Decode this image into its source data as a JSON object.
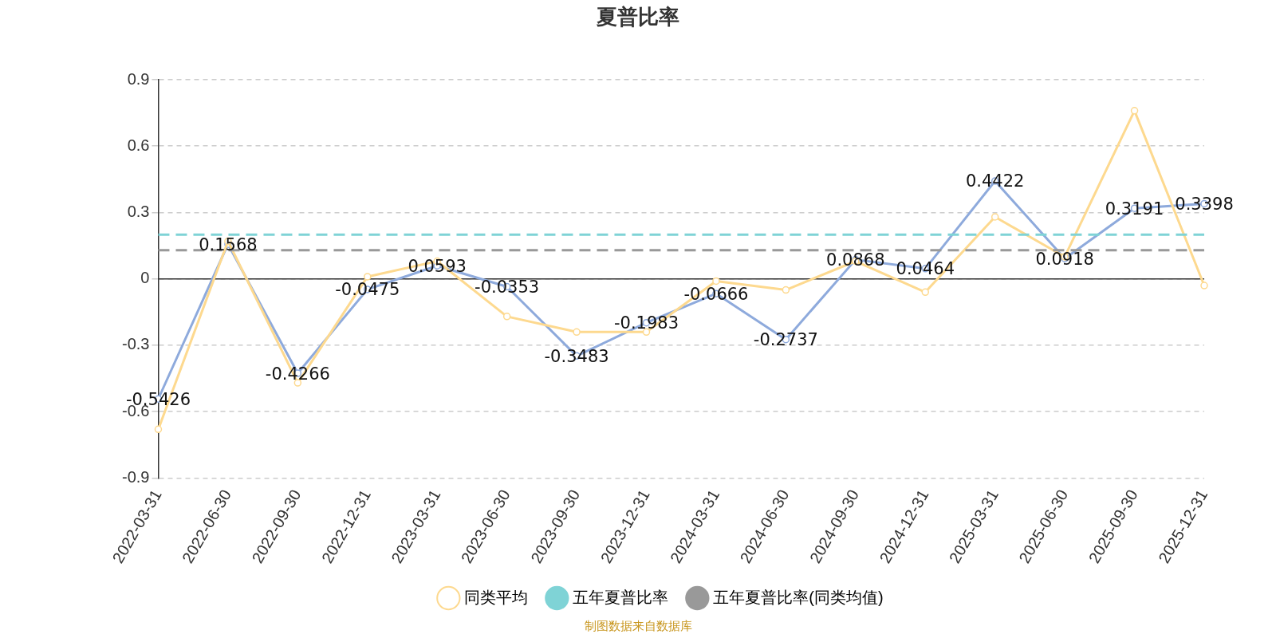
{
  "chart_data": {
    "type": "line",
    "title": "夏普比率",
    "categories": [
      "2022-03-31",
      "2022-06-30",
      "2022-09-30",
      "2022-12-31",
      "2023-03-31",
      "2023-06-30",
      "2023-09-30",
      "2023-12-31",
      "2024-03-31",
      "2024-06-30",
      "2024-09-30",
      "2024-12-31",
      "2025-03-31",
      "2025-06-30",
      "2025-09-30",
      "2025-12-31"
    ],
    "series": [
      {
        "color": "#8eaadc",
        "marker": "circle",
        "values": [
          -0.5426,
          0.1568,
          -0.4266,
          -0.0475,
          0.0593,
          -0.0353,
          -0.3483,
          -0.1983,
          -0.0666,
          -0.2737,
          0.0868,
          0.0464,
          0.4422,
          0.0918,
          0.3191,
          0.3398
        ],
        "value_labels": [
          "-0.5426",
          "0.1568",
          "-0.4266",
          "-0.0475",
          "0.0593",
          "-0.0353",
          "-0.3483",
          "-0.1983",
          "-0.0666",
          "-0.2737",
          "0.0868",
          "0.0464",
          "0.4422",
          "0.0918",
          "0.3191",
          "0.3398"
        ]
      },
      {
        "name": "同类平均",
        "color": "#fdd98f",
        "marker": "circle",
        "values": [
          -0.68,
          0.17,
          -0.47,
          0.01,
          0.08,
          -0.17,
          -0.24,
          -0.24,
          -0.01,
          -0.05,
          0.08,
          -0.06,
          0.28,
          0.1,
          0.76,
          -0.03
        ]
      },
      {
        "name": "五年夏普比率",
        "color": "#7fd3d6",
        "marker": "none",
        "line_style": "dashed",
        "values": [
          0.2,
          0.2,
          0.2,
          0.2,
          0.2,
          0.2,
          0.2,
          0.2,
          0.2,
          0.2,
          0.2,
          0.2,
          0.2,
          0.2,
          0.2,
          0.2
        ]
      },
      {
        "name": "五年夏普比率(同类均值)",
        "color": "#999999",
        "marker": "none",
        "line_style": "dashed",
        "values": [
          0.13,
          0.13,
          0.13,
          0.13,
          0.13,
          0.13,
          0.13,
          0.13,
          0.13,
          0.13,
          0.13,
          0.13,
          0.13,
          0.13,
          0.13,
          0.13
        ]
      }
    ],
    "ylim": [
      -0.9,
      0.9
    ],
    "yticks": [
      -0.9,
      -0.6,
      -0.3,
      0,
      0.3,
      0.6,
      0.9
    ],
    "grid": "y",
    "legend": "bottom",
    "annotations": [
      "制图数据来自数据库"
    ]
  }
}
